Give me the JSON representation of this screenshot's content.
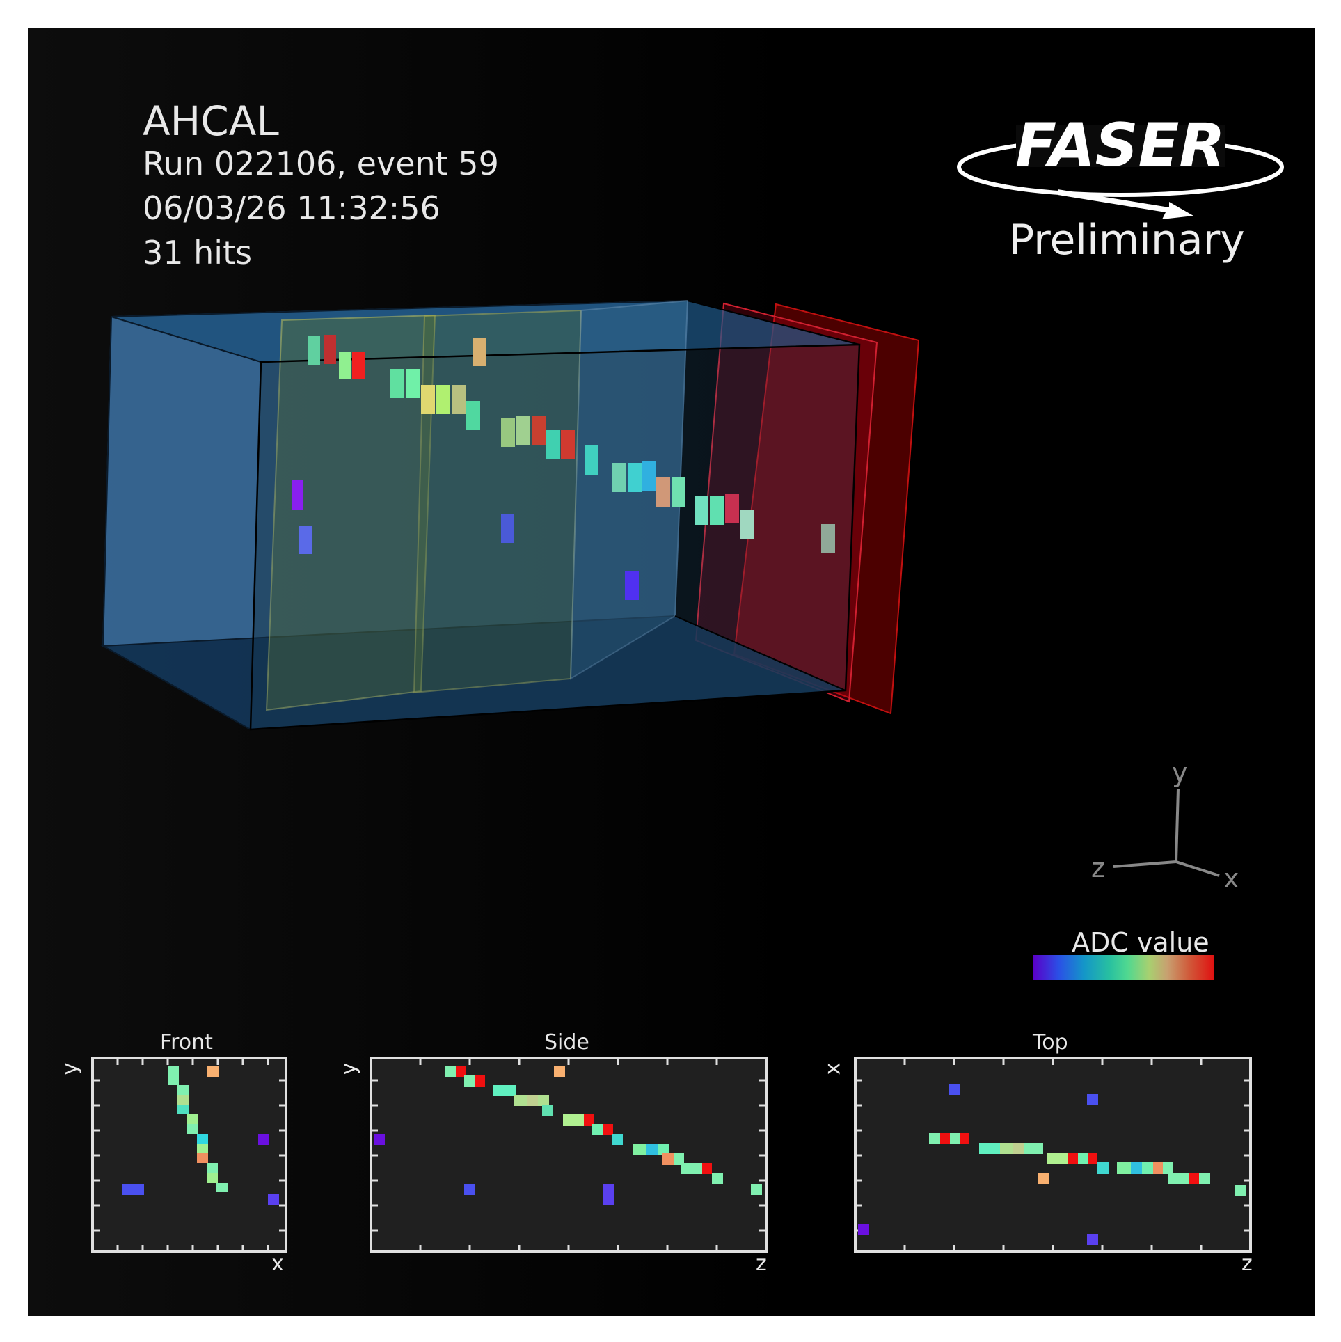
{
  "header": {
    "title": "AHCAL",
    "run": "Run 022106, event 59",
    "date": "06/03/26 11:32:56",
    "hits": "31 hits"
  },
  "logo": {
    "text": "FASER",
    "status": "Preliminary"
  },
  "axes3d": {
    "y": "y",
    "z": "z",
    "x": "x"
  },
  "colorbar": {
    "label": "ADC value",
    "colors": [
      "#5a00c8",
      "#2a50e6",
      "#1496c8",
      "#28c0a0",
      "#50d890",
      "#a8d070",
      "#c8a070",
      "#d05a3a",
      "#e01010"
    ]
  },
  "projections": {
    "front": {
      "title": "Front",
      "xlabel": "x",
      "ylabel": "y"
    },
    "side": {
      "title": "Side",
      "xlabel": "z",
      "ylabel": "y"
    },
    "top": {
      "title": "Top",
      "xlabel": "z",
      "ylabel": "x"
    }
  }
}
